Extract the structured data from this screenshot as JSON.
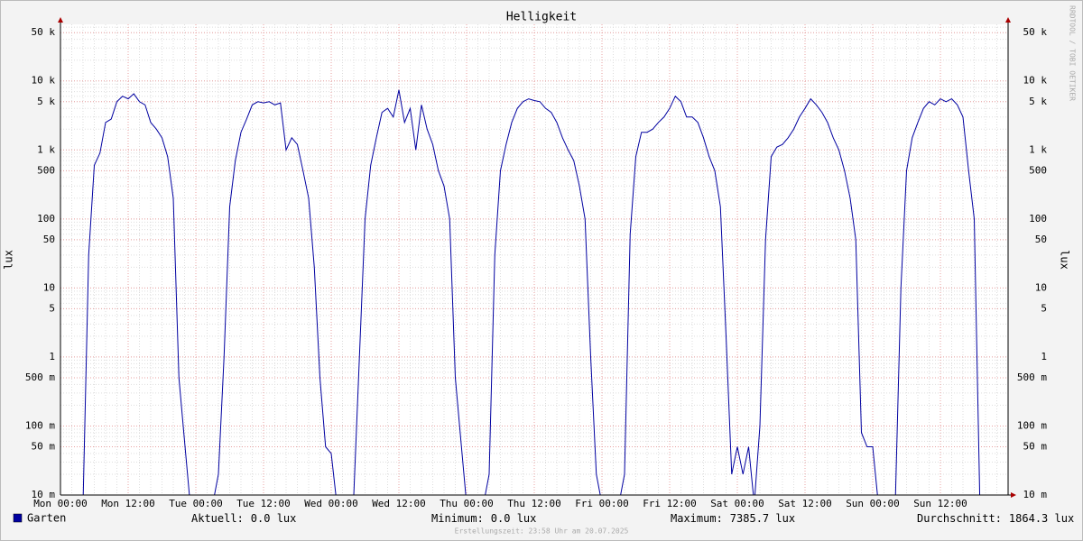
{
  "chart_data": {
    "type": "line",
    "title": "Helligkeit",
    "y_label": "lux",
    "y_scale": "log",
    "grid": true,
    "watermark": "RRDTOOL / TOBI OETIKER",
    "footer": "Erstellungszeit: 23:58 Uhr am 20.07.2025",
    "xlim": [
      0,
      168
    ],
    "xticks": [
      {
        "value": 0,
        "label": "Mon 00:00"
      },
      {
        "value": 12,
        "label": "Mon 12:00"
      },
      {
        "value": 24,
        "label": "Tue 00:00"
      },
      {
        "value": 36,
        "label": "Tue 12:00"
      },
      {
        "value": 48,
        "label": "Wed 00:00"
      },
      {
        "value": 60,
        "label": "Wed 12:00"
      },
      {
        "value": 72,
        "label": "Thu 00:00"
      },
      {
        "value": 84,
        "label": "Thu 12:00"
      },
      {
        "value": 96,
        "label": "Fri 00:00"
      },
      {
        "value": 108,
        "label": "Fri 12:00"
      },
      {
        "value": 120,
        "label": "Sat 00:00"
      },
      {
        "value": 132,
        "label": "Sat 12:00"
      },
      {
        "value": 144,
        "label": "Sun 00:00"
      },
      {
        "value": 156,
        "label": "Sun 12:00"
      }
    ],
    "ylim": [
      0.01,
      66000
    ],
    "yticks": [
      {
        "value": 50000,
        "label": "50 k"
      },
      {
        "value": 10000,
        "label": "10 k"
      },
      {
        "value": 5000,
        "label": "5 k"
      },
      {
        "value": 1000,
        "label": "1 k"
      },
      500,
      100,
      50,
      10,
      5,
      1,
      {
        "value": 0.5,
        "label": "500 m"
      },
      {
        "value": 0.1,
        "label": "100 m"
      },
      {
        "value": 0.05,
        "label": "50 m"
      },
      {
        "value": 0.01,
        "label": "10 m"
      }
    ],
    "x": [
      0,
      1,
      2,
      3,
      4,
      5,
      6,
      7,
      8,
      9,
      10,
      11,
      12,
      13,
      14,
      15,
      16,
      17,
      18,
      19,
      20,
      21,
      22,
      23,
      24,
      25,
      26,
      27,
      28,
      29,
      30,
      31,
      32,
      33,
      34,
      35,
      36,
      37,
      38,
      39,
      40,
      41,
      42,
      43,
      44,
      45,
      46,
      47,
      48,
      49,
      50,
      51,
      52,
      53,
      54,
      55,
      56,
      57,
      58,
      59,
      60,
      61,
      62,
      63,
      64,
      65,
      66,
      67,
      68,
      69,
      70,
      71,
      72,
      73,
      74,
      75,
      76,
      77,
      78,
      79,
      80,
      81,
      82,
      83,
      84,
      85,
      86,
      87,
      88,
      89,
      90,
      91,
      92,
      93,
      94,
      95,
      96,
      97,
      98,
      99,
      100,
      101,
      102,
      103,
      104,
      105,
      106,
      107,
      108,
      109,
      110,
      111,
      112,
      113,
      114,
      115,
      116,
      117,
      118,
      119,
      120,
      121,
      122,
      123,
      124,
      125,
      126,
      127,
      128,
      129,
      130,
      131,
      132,
      133,
      134,
      135,
      136,
      137,
      138,
      139,
      140,
      141,
      142,
      143,
      144,
      145,
      146,
      147,
      148,
      149,
      150,
      151,
      152,
      153,
      154,
      155,
      156,
      157,
      158,
      159,
      160,
      161,
      162,
      163,
      164,
      165,
      166,
      167,
      168
    ],
    "series": [
      {
        "name": "Garten",
        "color": "#0000a0",
        "values": [
          0,
          0,
          0,
          0,
          0,
          30,
          600,
          900,
          2500,
          2800,
          5000,
          6000,
          5500,
          6500,
          5000,
          4500,
          2500,
          2000,
          1500,
          800,
          200,
          0.5,
          0.06,
          0,
          0,
          0,
          0,
          0,
          0.02,
          1,
          150,
          700,
          1800,
          2800,
          4500,
          5000,
          4800,
          5000,
          4500,
          4800,
          1000,
          1500,
          1200,
          500,
          200,
          20,
          0.5,
          0.05,
          0.04,
          0,
          0,
          0,
          0.01,
          1,
          100,
          600,
          1500,
          3500,
          4000,
          3000,
          7400,
          2500,
          4000,
          1000,
          4500,
          2000,
          1200,
          500,
          300,
          100,
          0.5,
          0.06,
          0,
          0,
          0,
          0,
          0.02,
          30,
          500,
          1200,
          2500,
          4000,
          5000,
          5500,
          5200,
          5000,
          4000,
          3500,
          2500,
          1500,
          1000,
          700,
          300,
          100,
          1,
          0.02,
          0,
          0,
          0,
          0,
          0.02,
          60,
          800,
          1800,
          1800,
          2000,
          2500,
          3000,
          4000,
          6000,
          5000,
          3000,
          3000,
          2500,
          1500,
          800,
          500,
          150,
          2,
          0.02,
          0.05,
          0.02,
          0.05,
          0,
          0.1,
          50,
          800,
          1100,
          1200,
          1500,
          2000,
          3000,
          4000,
          5500,
          4500,
          3500,
          2500,
          1500,
          1000,
          500,
          200,
          50,
          0.08,
          0.05,
          0.05,
          0,
          0,
          0,
          0,
          10,
          500,
          1500,
          2500,
          4000,
          5000,
          4500,
          5500,
          5000,
          5500,
          4500,
          3000,
          500,
          100,
          0,
          0,
          0,
          0,
          0,
          0
        ]
      }
    ],
    "legend_stats": [
      {
        "label": "Aktuell:",
        "value": "0.0 lux"
      },
      {
        "label": "Minimum:",
        "value": "0.0 lux"
      },
      {
        "label": "Maximum:",
        "value": "7385.7 lux"
      },
      {
        "label": "Durchschnitt:",
        "value": "1864.3 lux"
      }
    ]
  }
}
